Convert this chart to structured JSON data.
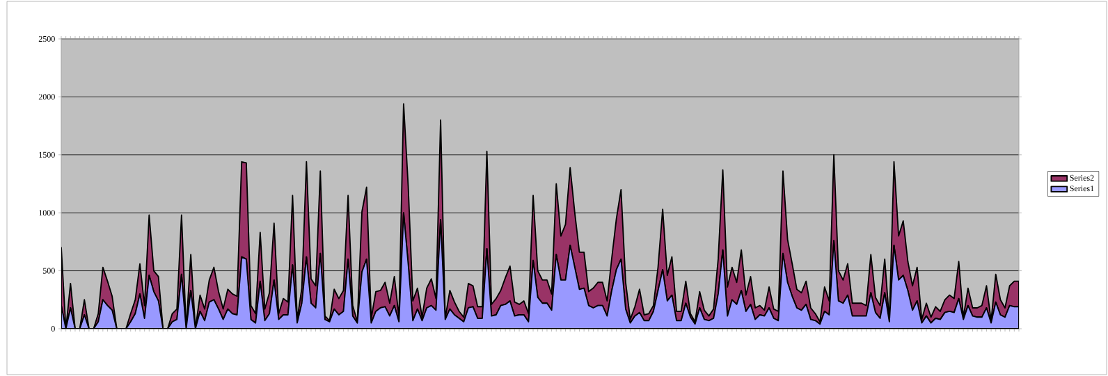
{
  "chart_data": {
    "type": "area",
    "stacked": true,
    "categories": [
      null,
      null,
      null,
      null,
      null,
      null,
      null,
      null,
      null,
      null,
      null,
      null,
      null,
      null,
      null,
      null,
      null,
      null,
      null,
      null,
      null,
      null,
      null,
      null,
      null,
      null,
      null,
      null,
      null,
      null,
      null,
      null,
      null,
      null,
      null,
      null,
      null,
      null,
      null,
      null,
      null,
      null,
      null,
      null,
      null,
      null,
      null,
      null,
      null,
      null,
      null,
      null,
      null,
      null,
      null,
      null,
      null,
      null,
      null,
      null,
      null,
      null,
      null,
      null,
      null,
      null,
      null,
      null,
      null,
      null,
      null,
      null,
      null,
      null,
      null,
      null,
      null,
      null,
      null,
      null,
      null,
      null,
      null,
      null,
      null,
      null,
      null,
      null,
      null,
      null,
      null,
      null,
      null,
      null,
      null,
      null,
      null,
      null,
      null,
      null,
      null,
      null,
      null,
      null,
      null,
      null,
      null,
      null,
      null,
      null,
      null,
      null,
      null,
      null,
      null,
      null,
      null,
      null,
      null,
      null,
      null,
      null,
      null,
      null,
      null,
      null,
      null,
      null,
      null,
      null,
      null,
      null,
      null,
      null,
      null,
      null,
      null,
      null,
      null,
      null,
      null,
      null,
      null,
      null,
      null,
      null,
      null,
      null,
      null,
      null,
      null,
      null,
      null,
      null,
      null,
      null,
      null,
      null,
      null,
      null,
      null,
      null,
      null,
      null,
      null,
      null,
      null,
      null,
      null,
      null,
      null,
      null,
      null,
      null,
      null,
      null,
      null,
      null,
      null,
      null,
      null,
      null,
      null,
      null,
      null,
      null,
      null,
      null,
      null,
      null,
      null,
      null,
      null,
      null,
      null,
      null,
      null,
      null,
      null,
      null,
      null,
      null,
      null,
      null,
      null,
      null,
      null,
      null
    ],
    "series": [
      {
        "name": "Series1",
        "color": "#9999ff",
        "values": [
          200,
          0,
          180,
          0,
          0,
          120,
          0,
          0,
          60,
          250,
          200,
          160,
          0,
          0,
          0,
          60,
          130,
          300,
          90,
          460,
          320,
          240,
          0,
          0,
          60,
          80,
          470,
          0,
          330,
          0,
          150,
          70,
          230,
          250,
          170,
          80,
          170,
          130,
          120,
          620,
          600,
          80,
          50,
          410,
          70,
          130,
          420,
          80,
          120,
          120,
          550,
          50,
          220,
          620,
          220,
          180,
          650,
          80,
          60,
          170,
          120,
          150,
          600,
          110,
          50,
          490,
          600,
          50,
          150,
          180,
          190,
          110,
          200,
          60,
          1000,
          560,
          70,
          170,
          70,
          180,
          200,
          160,
          940,
          80,
          170,
          120,
          90,
          60,
          180,
          190,
          90,
          90,
          690,
          110,
          120,
          200,
          210,
          240,
          110,
          120,
          120,
          60,
          590,
          270,
          220,
          220,
          160,
          640,
          420,
          420,
          720,
          530,
          340,
          350,
          200,
          180,
          200,
          200,
          110,
          330,
          510,
          600,
          170,
          50,
          110,
          140,
          70,
          70,
          150,
          330,
          510,
          240,
          290,
          70,
          70,
          220,
          100,
          40,
          180,
          80,
          70,
          90,
          300,
          680,
          110,
          250,
          210,
          330,
          150,
          210,
          80,
          120,
          110,
          180,
          90,
          70,
          650,
          400,
          280,
          180,
          160,
          210,
          80,
          70,
          40,
          150,
          120,
          760,
          240,
          220,
          290,
          110,
          110,
          110,
          110,
          310,
          140,
          90,
          310,
          60,
          720,
          420,
          460,
          330,
          160,
          240,
          50,
          110,
          50,
          90,
          80,
          140,
          150,
          140,
          260,
          80,
          200,
          110,
          100,
          100,
          180,
          50,
          230,
          120,
          100,
          200,
          190,
          190
        ]
      },
      {
        "name": "Series2",
        "color": "#993366",
        "values": [
          500,
          0,
          210,
          0,
          0,
          130,
          0,
          0,
          70,
          280,
          210,
          120,
          0,
          0,
          0,
          70,
          120,
          260,
          110,
          520,
          180,
          210,
          0,
          0,
          70,
          90,
          510,
          0,
          310,
          0,
          140,
          100,
          190,
          280,
          150,
          90,
          170,
          170,
          160,
          820,
          830,
          120,
          80,
          420,
          100,
          180,
          490,
          50,
          140,
          110,
          600,
          30,
          130,
          820,
          210,
          190,
          710,
          30,
          10,
          170,
          140,
          180,
          550,
          90,
          10,
          520,
          620,
          40,
          170,
          150,
          210,
          110,
          250,
          40,
          940,
          670,
          170,
          180,
          30,
          170,
          230,
          100,
          860,
          10,
          160,
          110,
          60,
          40,
          210,
          180,
          100,
          100,
          840,
          100,
          140,
          130,
          230,
          300,
          120,
          90,
          120,
          70,
          560,
          230,
          200,
          200,
          140,
          610,
          380,
          480,
          670,
          470,
          320,
          310,
          120,
          170,
          200,
          200,
          130,
          280,
          440,
          600,
          230,
          30,
          80,
          200,
          50,
          60,
          50,
          200,
          520,
          220,
          330,
          80,
          80,
          190,
          30,
          20,
          140,
          80,
          40,
          80,
          300,
          690,
          250,
          280,
          190,
          350,
          140,
          240,
          100,
          80,
          50,
          180,
          80,
          80,
          710,
          370,
          280,
          160,
          150,
          200,
          100,
          60,
          20,
          210,
          120,
          740,
          260,
          200,
          270,
          110,
          110,
          110,
          90,
          330,
          130,
          110,
          290,
          10,
          720,
          380,
          470,
          250,
          210,
          290,
          30,
          110,
          50,
          100,
          70,
          110,
          140,
          120,
          320,
          20,
          150,
          70,
          80,
          100,
          190,
          20,
          240,
          130,
          80,
          170,
          220,
          220
        ]
      }
    ],
    "ylim": [
      0,
      2500
    ],
    "yticks": [
      0,
      500,
      1000,
      1500,
      2000,
      2500
    ],
    "grid": "y",
    "legend": "right"
  }
}
